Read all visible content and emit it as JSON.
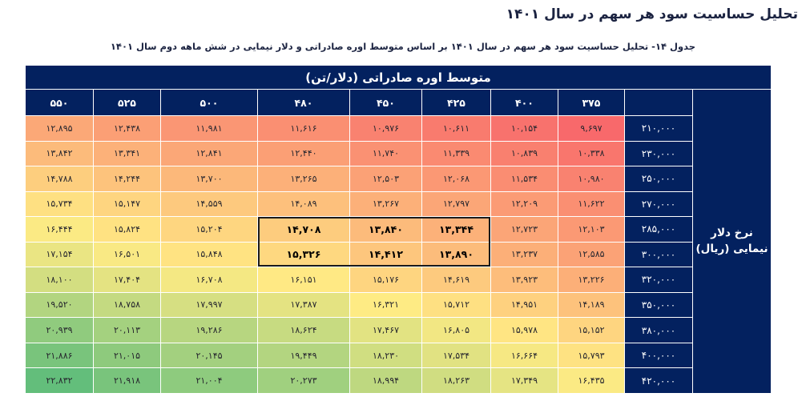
{
  "page": {
    "title": "تحلیل حساسیت سود هر سهم در سال ۱۴۰۱",
    "subtitle": "جدول ۱۴- تحلیل حساسیت سود هر سهم در سال ۱۴۰۱ بر اساس متوسط اوره صادراتی و دلار نیمایی در شش ماهه دوم سال ۱۴۰۱"
  },
  "colors": {
    "navy": "#03215f",
    "title_text": "#1b2341",
    "cell_text": "#26262e",
    "scale_min": "#F8696B",
    "scale_mid": "#FFEB84",
    "scale_max": "#63BE7B",
    "highlight_border": "#1a1a1a"
  },
  "chart_data": {
    "type": "heatmap",
    "title": "تحلیل حساسیت سود هر سهم در سال ۱۴۰۱",
    "x_axis_label": "متوسط اوره صادراتی (دلار/تن)",
    "y_axis_label_lines": [
      "نرخ دلار",
      "نیمایی (ریال)"
    ],
    "x": [
      375,
      400,
      425,
      450,
      480,
      500,
      525,
      550
    ],
    "y": [
      210000,
      230000,
      250000,
      270000,
      285000,
      300000,
      320000,
      350000,
      380000,
      400000,
      420000
    ],
    "rows": [
      [
        9697,
        10154,
        10611,
        10976,
        11616,
        11981,
        12438,
        12895
      ],
      [
        10338,
        10839,
        11339,
        11740,
        12440,
        12841,
        13341,
        13842
      ],
      [
        10980,
        11534,
        12068,
        12503,
        13265,
        13700,
        14244,
        14788
      ],
      [
        11622,
        12209,
        12797,
        13267,
        14089,
        14559,
        15147,
        15734
      ],
      [
        12103,
        12723,
        13344,
        13840,
        14708,
        15204,
        15824,
        16444
      ],
      [
        12585,
        13237,
        13890,
        14412,
        15326,
        15848,
        16501,
        17154
      ],
      [
        13226,
        13923,
        14619,
        15176,
        16151,
        16708,
        17404,
        18100
      ],
      [
        14189,
        14951,
        15712,
        16321,
        17387,
        17997,
        18758,
        19520
      ],
      [
        15152,
        15978,
        16805,
        17467,
        18624,
        19286,
        20113,
        20939
      ],
      [
        15793,
        16664,
        17534,
        18230,
        19449,
        20145,
        21015,
        21886
      ],
      [
        16435,
        17349,
        18263,
        18994,
        20273,
        21004,
        21918,
        22832
      ]
    ],
    "colorscale": {
      "min_color": "#F8696B",
      "mid_color": "#FFEB84",
      "max_color": "#63BE7B"
    },
    "highlight_box": {
      "x_values": [
        425,
        450,
        480
      ],
      "y_values": [
        285000,
        300000
      ],
      "bold": true
    },
    "layout": {
      "column_order": "right-to-left",
      "row_labels_side": "right",
      "y_axis_title_side": "far-right"
    }
  }
}
